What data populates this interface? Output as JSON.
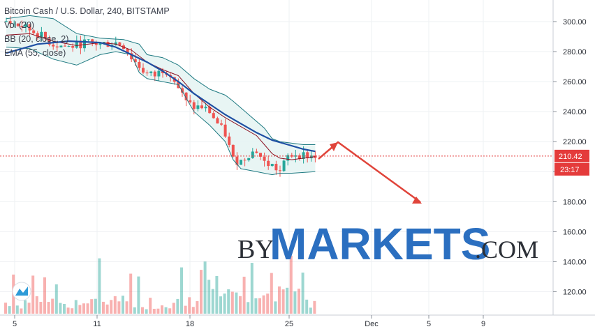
{
  "chart_data": {
    "type": "candlestick",
    "title": "Bitcoin Cash / U.S. Dollar, 240, BITSTAMP",
    "indicators": [
      "Vol (20)",
      "BB (20, close, 2)",
      "EMA (55, close)"
    ],
    "y_ticks": [
      120,
      140,
      160,
      180,
      200,
      220,
      240,
      260,
      280,
      300
    ],
    "y_tick_labels": [
      "120.00",
      "140.00",
      "160.00",
      "180.00",
      "200.00",
      "220.00",
      "240.00",
      "260.00",
      "280.00",
      "300.00"
    ],
    "ylim": [
      103,
      306
    ],
    "x_tick_labels": [
      "5",
      "11",
      "18",
      "25",
      "Dec",
      "5",
      "9"
    ],
    "last_price": 210.42,
    "last_price_label": "210.42",
    "countdown_label": "23:17",
    "price_path": [
      [
        0,
        300
      ],
      [
        4,
        297
      ],
      [
        8,
        292
      ],
      [
        12,
        285
      ],
      [
        16,
        283
      ],
      [
        20,
        286
      ],
      [
        24,
        285
      ],
      [
        28,
        286
      ],
      [
        30,
        284
      ],
      [
        32,
        276
      ],
      [
        34,
        270
      ],
      [
        36,
        265
      ],
      [
        38,
        264
      ],
      [
        40,
        268
      ],
      [
        42,
        266
      ],
      [
        44,
        256
      ],
      [
        46,
        246
      ],
      [
        48,
        243
      ],
      [
        50,
        243
      ],
      [
        52,
        240
      ],
      [
        54,
        232
      ],
      [
        56,
        225
      ],
      [
        58,
        208
      ],
      [
        60,
        207
      ],
      [
        62,
        212
      ],
      [
        64,
        214
      ],
      [
        66,
        206
      ],
      [
        68,
        204
      ],
      [
        70,
        200
      ],
      [
        72,
        210
      ],
      [
        74,
        212
      ],
      [
        76,
        211
      ],
      [
        78,
        210.4
      ]
    ],
    "ema_55": [
      [
        0,
        279
      ],
      [
        8,
        285
      ],
      [
        16,
        287
      ],
      [
        24,
        286
      ],
      [
        28,
        283
      ],
      [
        32,
        278
      ],
      [
        36,
        273
      ],
      [
        40,
        267
      ],
      [
        44,
        260
      ],
      [
        48,
        252
      ],
      [
        52,
        245
      ],
      [
        56,
        238
      ],
      [
        60,
        232
      ],
      [
        64,
        226
      ],
      [
        68,
        221
      ],
      [
        72,
        218
      ],
      [
        76,
        215
      ],
      [
        79,
        213.5
      ]
    ],
    "bb_upper": [
      [
        0,
        302
      ],
      [
        6,
        304
      ],
      [
        12,
        302
      ],
      [
        18,
        292
      ],
      [
        24,
        289
      ],
      [
        30,
        288
      ],
      [
        34,
        285
      ],
      [
        36,
        278
      ],
      [
        40,
        276
      ],
      [
        44,
        271
      ],
      [
        48,
        262
      ],
      [
        52,
        255
      ],
      [
        56,
        251
      ],
      [
        58,
        247
      ],
      [
        62,
        238
      ],
      [
        66,
        229
      ],
      [
        68,
        222
      ],
      [
        70,
        220
      ],
      [
        73,
        219
      ],
      [
        76,
        218
      ],
      [
        79,
        218
      ]
    ],
    "bb_middle": [
      [
        0,
        291
      ],
      [
        6,
        292
      ],
      [
        12,
        287
      ],
      [
        18,
        284
      ],
      [
        24,
        286
      ],
      [
        28,
        285
      ],
      [
        32,
        281
      ],
      [
        36,
        273
      ],
      [
        40,
        268
      ],
      [
        44,
        264
      ],
      [
        48,
        252
      ],
      [
        52,
        243
      ],
      [
        56,
        236
      ],
      [
        60,
        230
      ],
      [
        64,
        224
      ],
      [
        66,
        218
      ],
      [
        68,
        212
      ],
      [
        70,
        209
      ],
      [
        73,
        208
      ],
      [
        76,
        209
      ],
      [
        79,
        210
      ]
    ],
    "bb_lower": [
      [
        0,
        283
      ],
      [
        6,
        282
      ],
      [
        12,
        275
      ],
      [
        18,
        271
      ],
      [
        24,
        278
      ],
      [
        28,
        280
      ],
      [
        32,
        278
      ],
      [
        34,
        266
      ],
      [
        36,
        262
      ],
      [
        40,
        260
      ],
      [
        44,
        258
      ],
      [
        48,
        240
      ],
      [
        52,
        231
      ],
      [
        56,
        220
      ],
      [
        58,
        208
      ],
      [
        60,
        202
      ],
      [
        62,
        201
      ],
      [
        64,
        200
      ],
      [
        66,
        199
      ],
      [
        68,
        198
      ],
      [
        70,
        199
      ],
      [
        73,
        199
      ],
      [
        76,
        199.5
      ],
      [
        79,
        200
      ]
    ],
    "forecast_arrow": [
      [
        82,
        219
      ],
      [
        104,
        178
      ]
    ],
    "watermark": {
      "by": "BY",
      "markets": "MARKETS",
      "com": ".COM"
    },
    "colors": {
      "up": "#26a69a",
      "down": "#ef5350",
      "ema": "#1e4fa3",
      "bb_mid": "#8b0f1f",
      "bb_band": "#1f7a82",
      "bb_fill": "#e6f4f3",
      "arrow": "#e0443a",
      "watermark": "#2b6fc0",
      "price_line": "#e43b3b",
      "price_badge": "#e43b3b",
      "grid": "#eef0f3"
    }
  }
}
